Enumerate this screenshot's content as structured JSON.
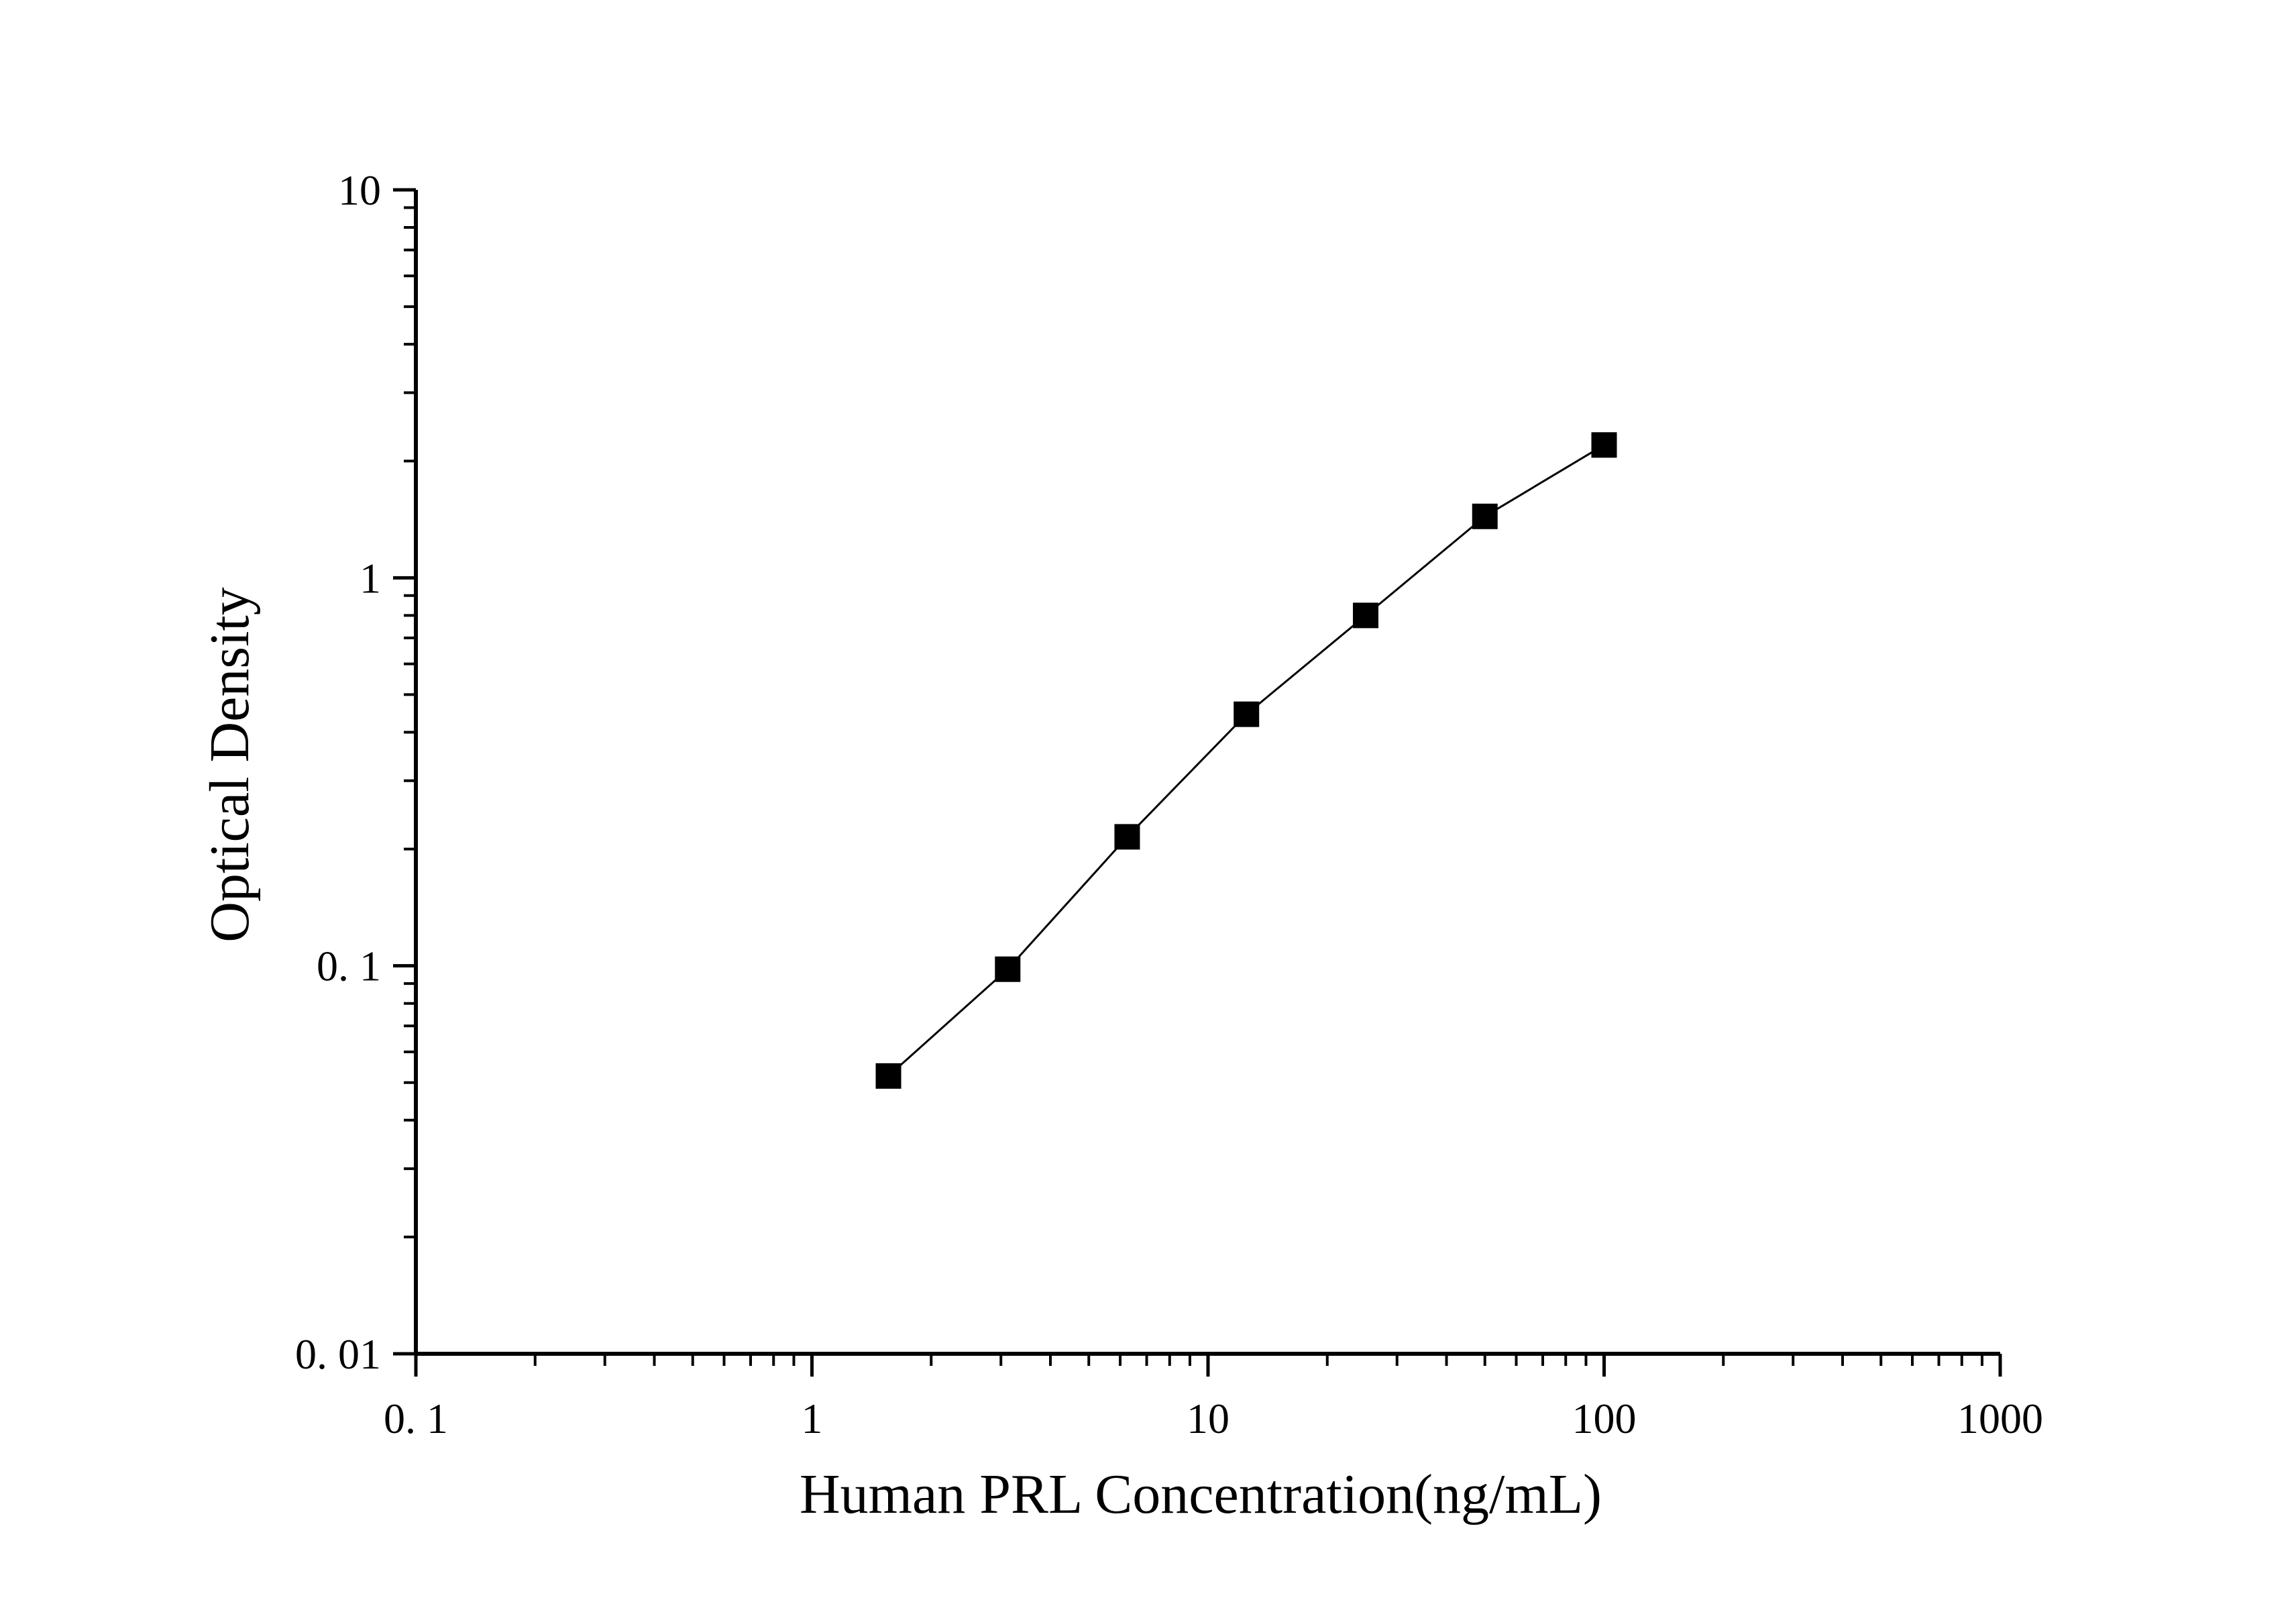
{
  "chart_data": {
    "type": "line",
    "title": "",
    "xlabel": "Human PRL Concentration(ng/mL)",
    "ylabel": "Optical Density",
    "xscale": "log",
    "yscale": "log",
    "xlim": [
      0.1,
      1000
    ],
    "ylim": [
      0.01,
      10
    ],
    "x_ticks": [
      0.1,
      1,
      10,
      100,
      1000
    ],
    "x_tick_labels": [
      "0. 1",
      "1",
      "10",
      "100",
      "1000"
    ],
    "y_ticks": [
      0.01,
      0.1,
      1,
      10
    ],
    "y_tick_labels": [
      "0. 01",
      "0. 1",
      "1",
      "10"
    ],
    "grid": false,
    "legend": "none",
    "marker": "square",
    "color": "#000000",
    "series": [
      {
        "x": [
          1.56,
          3.12,
          6.25,
          12.5,
          25,
          50,
          100
        ],
        "y": [
          0.052,
          0.098,
          0.215,
          0.445,
          0.8,
          1.44,
          2.2
        ]
      }
    ]
  }
}
